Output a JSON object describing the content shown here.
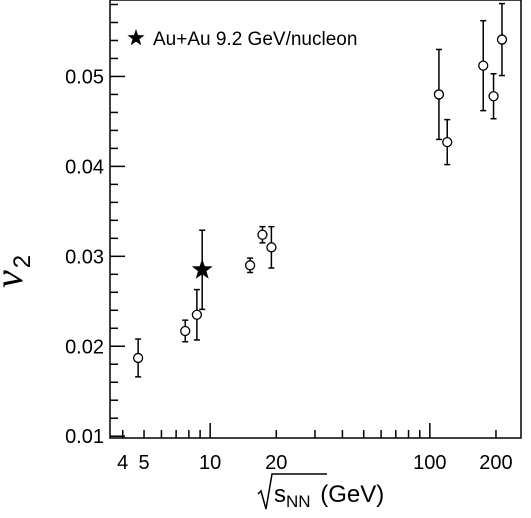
{
  "chart_data": {
    "type": "scatter",
    "x_scale": "log",
    "xlim": [
      3.5,
      260
    ],
    "ylim": [
      0.0098,
      0.0585
    ],
    "xlabel_prefix": "s",
    "xlabel_sub": "NN",
    "xlabel_suffix": " (GeV)",
    "ylabel_main": "v",
    "ylabel_sub": "2",
    "x_tick_labels": [
      {
        "value": 4,
        "label": "4"
      },
      {
        "value": 5,
        "label": "5"
      },
      {
        "value": 10,
        "label": "10"
      },
      {
        "value": 20,
        "label": "20"
      },
      {
        "value": 100,
        "label": "100"
      },
      {
        "value": 200,
        "label": "200"
      }
    ],
    "y_tick_labels": [
      {
        "value": 0.01,
        "label": "0.01"
      },
      {
        "value": 0.02,
        "label": "0.02"
      },
      {
        "value": 0.03,
        "label": "0.03"
      },
      {
        "value": 0.04,
        "label": "0.04"
      },
      {
        "value": 0.05,
        "label": "0.05"
      }
    ],
    "legend": {
      "position": "top-left",
      "label": "Au+Au 9.2 GeV/nucleon",
      "marker": "star"
    },
    "series": [
      {
        "marker": "open-circle",
        "points": [
          {
            "x": 4.7,
            "y": 0.0187,
            "err": 0.0021
          },
          {
            "x": 7.7,
            "y": 0.0217,
            "err": 0.0012
          },
          {
            "x": 8.7,
            "y": 0.0235,
            "err": 0.0028
          },
          {
            "x": 15.2,
            "y": 0.029,
            "err": 0.0008
          },
          {
            "x": 17.3,
            "y": 0.0324,
            "err": 0.0009
          },
          {
            "x": 19.0,
            "y": 0.031,
            "err": 0.0023
          },
          {
            "x": 110,
            "y": 0.048,
            "err": 0.005
          },
          {
            "x": 120,
            "y": 0.0427,
            "err": 0.0025
          },
          {
            "x": 175,
            "y": 0.0512,
            "err": 0.005
          },
          {
            "x": 195,
            "y": 0.0478,
            "err": 0.0025
          },
          {
            "x": 213,
            "y": 0.0541,
            "err": 0.004
          }
        ]
      },
      {
        "name": "Au+Au 9.2 GeV/nucleon",
        "marker": "star",
        "points": [
          {
            "x": 9.2,
            "y": 0.0285,
            "err": 0.0044
          }
        ]
      }
    ]
  }
}
